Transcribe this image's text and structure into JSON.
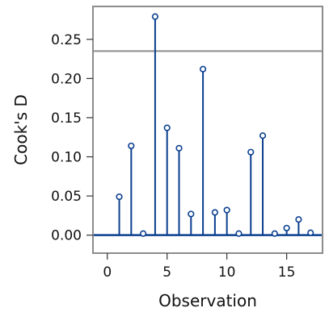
{
  "chart_data": {
    "type": "stem",
    "title": "",
    "xlabel": "Observation",
    "ylabel": "Cook's D",
    "xlim": [
      -1.2,
      18.0
    ],
    "ylim": [
      -0.023,
      0.292
    ],
    "xticks": [
      0,
      5,
      10,
      15
    ],
    "yticks": [
      0.0,
      0.05,
      0.1,
      0.15,
      0.2,
      0.25
    ],
    "ytick_labels": [
      "0.00",
      "0.05",
      "0.10",
      "0.15",
      "0.20",
      "0.25"
    ],
    "threshold": 0.235,
    "baseline": 0,
    "grid": false,
    "colors": {
      "stem": "#0b3f8f",
      "frame": "#8c8c8c",
      "threshold": "#8c8c8c"
    },
    "series": [
      {
        "x": [
          1,
          2,
          3,
          4,
          5,
          6,
          7,
          8,
          9,
          10,
          11,
          12,
          13,
          14,
          15,
          16,
          17
        ],
        "values": [
          0.049,
          0.114,
          0.002,
          0.279,
          0.137,
          0.111,
          0.027,
          0.212,
          0.029,
          0.032,
          0.002,
          0.106,
          0.127,
          0.002,
          0.009,
          0.02,
          0.003
        ]
      }
    ]
  }
}
